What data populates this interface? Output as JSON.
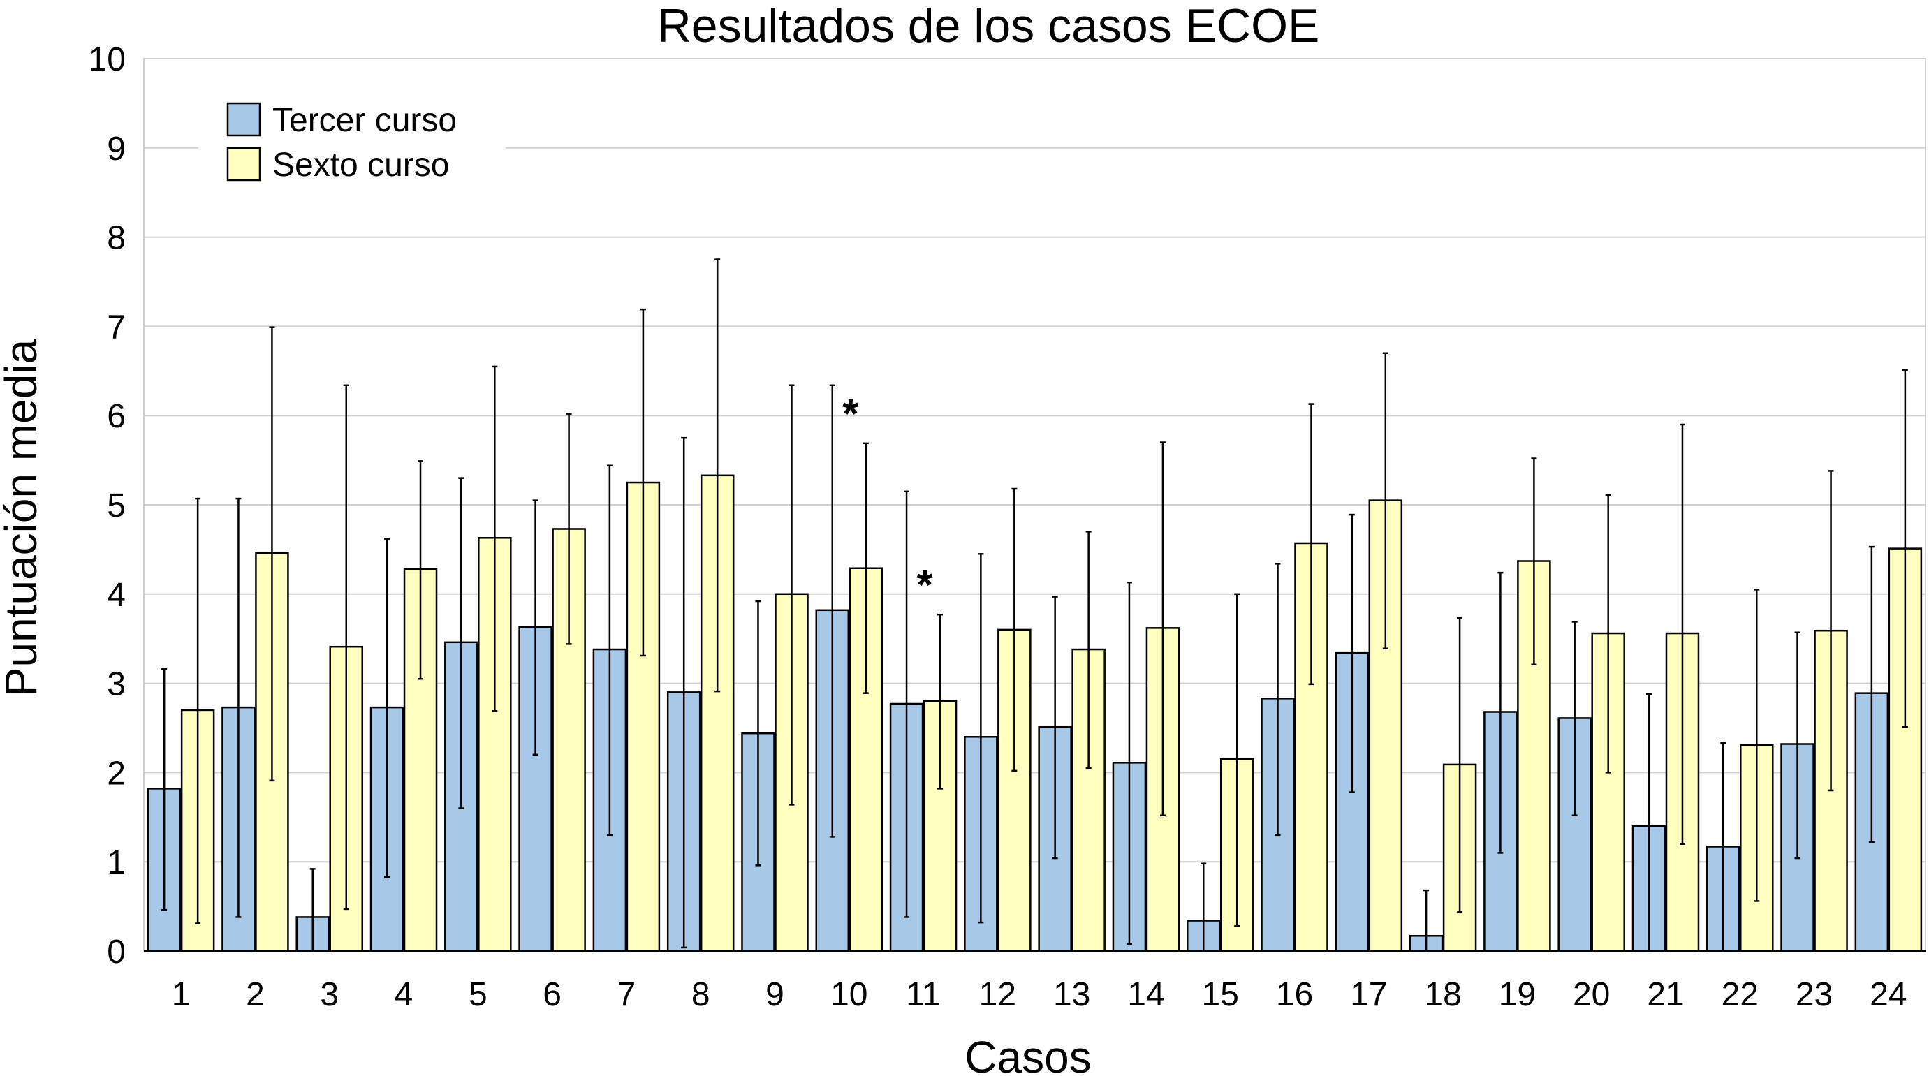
{
  "chart_data": {
    "type": "bar",
    "title": "Resultados de los casos ECOE",
    "xlabel": "Casos",
    "ylabel": "Puntuación media",
    "ylim": [
      0,
      10
    ],
    "yticks": [
      0,
      1,
      2,
      3,
      4,
      5,
      6,
      7,
      8,
      9,
      10
    ],
    "grid": true,
    "legend_position": "top-left",
    "categories": [
      "1",
      "2",
      "3",
      "4",
      "5",
      "6",
      "7",
      "8",
      "9",
      "10",
      "11",
      "12",
      "13",
      "14",
      "15",
      "16",
      "17",
      "18",
      "19",
      "20",
      "21",
      "22",
      "23",
      "24"
    ],
    "series": [
      {
        "name": "Tercer curso",
        "color": "#A8C8E8",
        "values": [
          1.82,
          2.73,
          0.38,
          2.73,
          3.46,
          3.63,
          3.38,
          2.9,
          2.44,
          3.82,
          2.77,
          2.4,
          2.51,
          2.11,
          0.34,
          2.83,
          3.34,
          0.17,
          2.68,
          2.61,
          1.4,
          1.17,
          2.32,
          2.89
        ],
        "error_low": [
          0.46,
          0.38,
          0.0,
          0.83,
          1.6,
          2.2,
          1.3,
          0.04,
          0.96,
          1.28,
          0.38,
          0.32,
          1.04,
          0.08,
          0.0,
          1.3,
          1.78,
          0.0,
          1.1,
          1.52,
          0.0,
          0.0,
          1.04,
          1.22
        ],
        "error_high": [
          3.16,
          5.07,
          0.92,
          4.62,
          5.3,
          5.05,
          5.44,
          5.75,
          3.92,
          6.34,
          5.15,
          4.45,
          3.97,
          4.13,
          0.98,
          4.34,
          4.89,
          0.68,
          4.24,
          3.69,
          2.88,
          2.33,
          3.57,
          4.53
        ]
      },
      {
        "name": "Sexto curso",
        "color": "#FFFFC0",
        "values": [
          2.7,
          4.46,
          3.41,
          4.28,
          4.63,
          4.73,
          5.25,
          5.33,
          4.0,
          4.29,
          2.8,
          3.6,
          3.38,
          3.62,
          2.15,
          4.57,
          5.05,
          2.09,
          4.37,
          3.56,
          3.56,
          2.31,
          3.59,
          4.51
        ],
        "error_low": [
          0.31,
          1.91,
          0.47,
          3.05,
          2.69,
          3.44,
          3.31,
          2.91,
          1.64,
          2.89,
          1.82,
          2.02,
          2.05,
          1.52,
          0.28,
          2.99,
          3.39,
          0.44,
          3.21,
          2.0,
          1.2,
          0.56,
          1.8,
          2.51
        ],
        "error_high": [
          5.07,
          6.99,
          6.34,
          5.49,
          6.55,
          6.02,
          7.19,
          7.75,
          6.34,
          5.69,
          3.77,
          5.18,
          4.7,
          5.7,
          4.0,
          6.13,
          6.7,
          3.73,
          5.52,
          5.11,
          5.9,
          4.05,
          5.38,
          6.51
        ]
      }
    ],
    "annotations": [
      {
        "text": "*",
        "category": "10",
        "series": "Sexto curso"
      },
      {
        "text": "*",
        "category": "11",
        "series": "Sexto curso"
      }
    ]
  }
}
